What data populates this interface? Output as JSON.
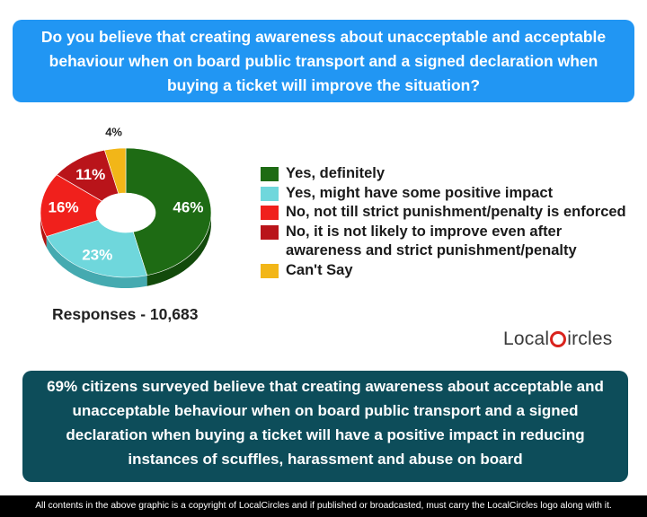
{
  "question": "Do you believe that creating awareness about unacceptable and acceptable behaviour when on board public transport and a signed declaration when buying a ticket will improve the situation?",
  "responses_label": "Responses - 10,683",
  "logo": {
    "part1": "Local",
    "part2": "ircles"
  },
  "summary": "69% citizens surveyed believe that creating awareness about acceptable and unacceptable behaviour when on board public transport and a signed declaration when buying a ticket will have a positive impact in reducing instances of scuffles, harassment and abuse on board",
  "footer": "All contents in the above graphic is a copyright of LocalCircles and if published or broadcasted, must carry the LocalCircles logo along with it.",
  "chart_data": {
    "type": "pie",
    "title": "",
    "slices": [
      {
        "label": "Yes, definitely",
        "value": 46,
        "display": "46%",
        "color": "#1e6b14",
        "side_color": "#124a0b"
      },
      {
        "label": "Yes, might have some positive impact",
        "value": 23,
        "display": "23%",
        "color": "#6fd7dc",
        "side_color": "#45aab0"
      },
      {
        "label": "No, not till strict punishment/penalty is enforced",
        "value": 16,
        "display": "16%",
        "color": "#f0201c",
        "side_color": "#b51310"
      },
      {
        "label": "No, it is not likely to improve even after awareness and strict punishment/penalty",
        "value": 11,
        "display": "11%",
        "color": "#b9141a",
        "side_color": "#860b10"
      },
      {
        "label": "Can't Say",
        "value": 4,
        "display": "4%",
        "color": "#f2b618",
        "side_color": "#c28d0c"
      }
    ],
    "legend_placement": "right"
  }
}
